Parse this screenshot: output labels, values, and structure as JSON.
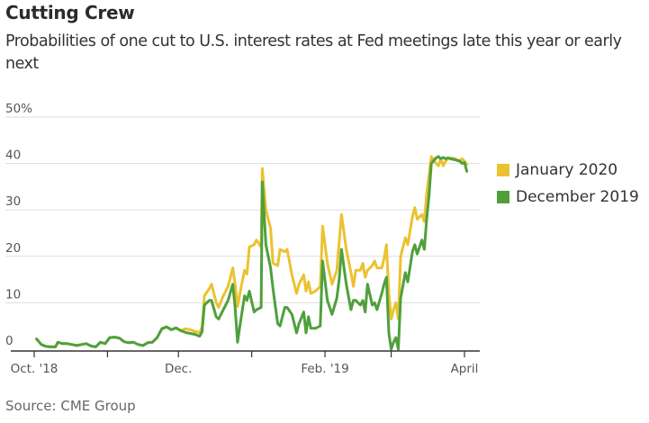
{
  "header": {
    "title": "Cutting Crew",
    "subtitle": "Probabilities of one cut to U.S. interest rates at Fed meetings late this year or early next"
  },
  "footer": {
    "source": "Source: CME Group"
  },
  "colors": {
    "january_2020": "#EBC231",
    "december_2019": "#4FA03C",
    "grid": "#dddddd",
    "axis": "#333333"
  },
  "chart_data": {
    "type": "line",
    "title": "Cutting Crew",
    "subtitle": "Probabilities of one cut to U.S. interest rates at Fed meetings late this year or early next",
    "xlabel": "",
    "ylabel": "",
    "x_unit": "days since Oct. 1, 2018",
    "xlim": [
      0,
      192
    ],
    "ylim": [
      0,
      50
    ],
    "y_ticks": [
      0,
      10,
      20,
      30,
      40,
      50
    ],
    "y_tick_labels": [
      "0",
      "10",
      "20",
      "30",
      "40",
      "50%"
    ],
    "x_ticks": [
      0,
      31,
      61,
      92,
      123,
      151,
      182
    ],
    "x_tick_labels": [
      "Oct. '18",
      "",
      "Dec.",
      "",
      "Feb. '19",
      "",
      "April"
    ],
    "grid": true,
    "legend_position": "right",
    "series": [
      {
        "name": "January 2020",
        "color_key": "january_2020",
        "points": [
          [
            1,
            2.2
          ],
          [
            2,
            1.6
          ],
          [
            3,
            1.0
          ],
          [
            5,
            0.6
          ],
          [
            7,
            0.5
          ],
          [
            9,
            0.5
          ],
          [
            10,
            1.5
          ],
          [
            12,
            1.2
          ],
          [
            14,
            1.2
          ],
          [
            16,
            1.0
          ],
          [
            18,
            0.8
          ],
          [
            20,
            1.0
          ],
          [
            22,
            1.2
          ],
          [
            24,
            0.7
          ],
          [
            26,
            0.5
          ],
          [
            28,
            1.5
          ],
          [
            30,
            1.2
          ],
          [
            32,
            2.5
          ],
          [
            34,
            2.6
          ],
          [
            36,
            2.4
          ],
          [
            38,
            1.6
          ],
          [
            40,
            1.4
          ],
          [
            42,
            1.5
          ],
          [
            44,
            1.0
          ],
          [
            46,
            0.8
          ],
          [
            48,
            1.4
          ],
          [
            50,
            1.5
          ],
          [
            52,
            2.5
          ],
          [
            54,
            4.4
          ],
          [
            56,
            4.8
          ],
          [
            58,
            4.2
          ],
          [
            60,
            4.6
          ],
          [
            62,
            4.0
          ],
          [
            64,
            4.4
          ],
          [
            66,
            4.2
          ],
          [
            68,
            3.8
          ],
          [
            70,
            3.6
          ],
          [
            71,
            4.8
          ],
          [
            72,
            11.5
          ],
          [
            74,
            13.0
          ],
          [
            75,
            14.0
          ],
          [
            77,
            10.0
          ],
          [
            78,
            9.0
          ],
          [
            80,
            11.5
          ],
          [
            82,
            13.5
          ],
          [
            84,
            17.5
          ],
          [
            85,
            14.0
          ],
          [
            86,
            9.2
          ],
          [
            87,
            12.0
          ],
          [
            89,
            17.0
          ],
          [
            90,
            16.2
          ],
          [
            91,
            22.0
          ],
          [
            93,
            22.5
          ],
          [
            94,
            23.5
          ],
          [
            96,
            22.0
          ],
          [
            96.5,
            38.9
          ],
          [
            98,
            30.0
          ],
          [
            100,
            26.0
          ],
          [
            101,
            18.5
          ],
          [
            103,
            18.0
          ],
          [
            104,
            21.5
          ],
          [
            106,
            21.0
          ],
          [
            107,
            21.5
          ],
          [
            109,
            16.0
          ],
          [
            111,
            12.0
          ],
          [
            112,
            14.0
          ],
          [
            114,
            16.0
          ],
          [
            115,
            12.5
          ],
          [
            116,
            14.5
          ],
          [
            117,
            12.0
          ],
          [
            119,
            12.5
          ],
          [
            121,
            13.5
          ],
          [
            122,
            26.5
          ],
          [
            124,
            18.5
          ],
          [
            126,
            14.0
          ],
          [
            128,
            17.0
          ],
          [
            129,
            23.0
          ],
          [
            130,
            29.0
          ],
          [
            132,
            21.5
          ],
          [
            134,
            16.5
          ],
          [
            135,
            13.5
          ],
          [
            136,
            17.0
          ],
          [
            138,
            17.0
          ],
          [
            139,
            18.5
          ],
          [
            140,
            15.5
          ],
          [
            141,
            17.0
          ],
          [
            143,
            18.0
          ],
          [
            144,
            19.0
          ],
          [
            145,
            17.5
          ],
          [
            147,
            17.5
          ],
          [
            148,
            19.5
          ],
          [
            149,
            22.5
          ],
          [
            150,
            12.0
          ],
          [
            151,
            6.5
          ],
          [
            152,
            8.5
          ],
          [
            153,
            10.0
          ],
          [
            154,
            6.5
          ],
          [
            155,
            20.0
          ],
          [
            157,
            24.0
          ],
          [
            158,
            22.5
          ],
          [
            160,
            28.5
          ],
          [
            161,
            30.5
          ],
          [
            162,
            28.0
          ],
          [
            164,
            29.0
          ],
          [
            165,
            27.5
          ],
          [
            166,
            33.5
          ],
          [
            167,
            37.5
          ],
          [
            168,
            41.5
          ],
          [
            170,
            40.0
          ],
          [
            171,
            39.5
          ],
          [
            172,
            41.0
          ],
          [
            173,
            39.5
          ],
          [
            174,
            40.5
          ],
          [
            175,
            41.0
          ],
          [
            176,
            41.2
          ],
          [
            178,
            41.0
          ],
          [
            180,
            40.5
          ],
          [
            181,
            41.0
          ],
          [
            182,
            40.5
          ],
          [
            183,
            39.8
          ]
        ]
      },
      {
        "name": "December 2019",
        "color_key": "december_2019",
        "points": [
          [
            1,
            2.2
          ],
          [
            2,
            1.6
          ],
          [
            3,
            1.0
          ],
          [
            5,
            0.6
          ],
          [
            7,
            0.5
          ],
          [
            9,
            0.5
          ],
          [
            10,
            1.5
          ],
          [
            12,
            1.2
          ],
          [
            14,
            1.2
          ],
          [
            16,
            1.0
          ],
          [
            18,
            0.8
          ],
          [
            20,
            1.0
          ],
          [
            22,
            1.2
          ],
          [
            24,
            0.7
          ],
          [
            26,
            0.5
          ],
          [
            28,
            1.5
          ],
          [
            30,
            1.2
          ],
          [
            32,
            2.5
          ],
          [
            34,
            2.6
          ],
          [
            36,
            2.4
          ],
          [
            38,
            1.6
          ],
          [
            40,
            1.4
          ],
          [
            42,
            1.5
          ],
          [
            44,
            1.0
          ],
          [
            46,
            0.8
          ],
          [
            48,
            1.4
          ],
          [
            50,
            1.5
          ],
          [
            52,
            2.5
          ],
          [
            54,
            4.4
          ],
          [
            56,
            4.8
          ],
          [
            58,
            4.2
          ],
          [
            60,
            4.6
          ],
          [
            62,
            4.0
          ],
          [
            64,
            3.6
          ],
          [
            66,
            3.4
          ],
          [
            68,
            3.2
          ],
          [
            70,
            2.8
          ],
          [
            71,
            3.8
          ],
          [
            72,
            9.5
          ],
          [
            74,
            10.5
          ],
          [
            75,
            10.5
          ],
          [
            77,
            7.0
          ],
          [
            78,
            6.5
          ],
          [
            80,
            8.5
          ],
          [
            82,
            10.5
          ],
          [
            84,
            14.0
          ],
          [
            85,
            9.0
          ],
          [
            86,
            1.5
          ],
          [
            87,
            5.0
          ],
          [
            89,
            11.5
          ],
          [
            90,
            10.5
          ],
          [
            91,
            12.5
          ],
          [
            93,
            8.0
          ],
          [
            94,
            8.5
          ],
          [
            96,
            9.0
          ],
          [
            96.5,
            36.0
          ],
          [
            98,
            22.5
          ],
          [
            100,
            17.5
          ],
          [
            101,
            13.0
          ],
          [
            103,
            5.5
          ],
          [
            104,
            5.0
          ],
          [
            106,
            9.0
          ],
          [
            107,
            9.0
          ],
          [
            109,
            7.5
          ],
          [
            111,
            3.5
          ],
          [
            112,
            5.5
          ],
          [
            114,
            8.0
          ],
          [
            115,
            3.5
          ],
          [
            116,
            7.0
          ],
          [
            117,
            4.5
          ],
          [
            119,
            4.5
          ],
          [
            121,
            5.0
          ],
          [
            122,
            19.0
          ],
          [
            124,
            10.5
          ],
          [
            126,
            7.5
          ],
          [
            128,
            11.0
          ],
          [
            129,
            15.0
          ],
          [
            130,
            21.5
          ],
          [
            132,
            14.0
          ],
          [
            134,
            8.5
          ],
          [
            135,
            10.5
          ],
          [
            136,
            10.5
          ],
          [
            138,
            9.5
          ],
          [
            139,
            10.5
          ],
          [
            140,
            8.0
          ],
          [
            141,
            14.0
          ],
          [
            143,
            9.5
          ],
          [
            144,
            10.0
          ],
          [
            145,
            8.5
          ],
          [
            147,
            12.0
          ],
          [
            148,
            14.0
          ],
          [
            149,
            15.5
          ],
          [
            150,
            3.5
          ],
          [
            151,
            0.0
          ],
          [
            152,
            1.5
          ],
          [
            153,
            2.5
          ],
          [
            154,
            0.0
          ],
          [
            155,
            11.0
          ],
          [
            157,
            16.5
          ],
          [
            158,
            14.5
          ],
          [
            160,
            21.0
          ],
          [
            161,
            22.5
          ],
          [
            162,
            20.5
          ],
          [
            164,
            23.5
          ],
          [
            165,
            21.5
          ],
          [
            166,
            28.0
          ],
          [
            167,
            33.0
          ],
          [
            168,
            40.0
          ],
          [
            170,
            41.2
          ],
          [
            171,
            41.5
          ],
          [
            172,
            41.0
          ],
          [
            173,
            41.3
          ],
          [
            174,
            41.0
          ],
          [
            175,
            41.2
          ],
          [
            176,
            41.0
          ],
          [
            178,
            40.8
          ],
          [
            180,
            40.5
          ],
          [
            181,
            40.0
          ],
          [
            182,
            40.2
          ],
          [
            183,
            38.3
          ]
        ]
      }
    ]
  }
}
